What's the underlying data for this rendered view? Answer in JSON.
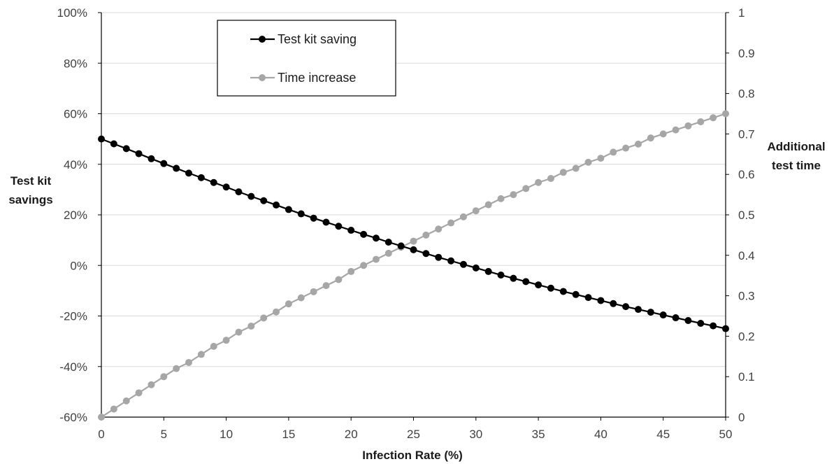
{
  "chart_data": {
    "type": "line",
    "title": "",
    "xlabel": "Infection Rate (%)",
    "ylabel_left": [
      "Test kit",
      "savings"
    ],
    "ylabel_right": [
      "Additional",
      "test time"
    ],
    "xlim": [
      0,
      50
    ],
    "ylim_left": [
      -60,
      100
    ],
    "ylim_right": [
      0,
      1
    ],
    "x_ticks": [
      "0",
      "5",
      "10",
      "15",
      "20",
      "25",
      "30",
      "35",
      "40",
      "45",
      "50"
    ],
    "y_left_ticks": [
      "-60%",
      "-40%",
      "-20%",
      "0%",
      "20%",
      "40%",
      "60%",
      "80%",
      "100%"
    ],
    "y_right_ticks": [
      "0",
      "0.1",
      "0.2",
      "0.3",
      "0.4",
      "0.5",
      "0.6",
      "0.7",
      "0.8",
      "0.9",
      "1"
    ],
    "grid": true,
    "legend_position": "top-left",
    "x": [
      0,
      1,
      2,
      3,
      4,
      5,
      6,
      7,
      8,
      9,
      10,
      11,
      12,
      13,
      14,
      15,
      16,
      17,
      18,
      19,
      20,
      21,
      22,
      23,
      24,
      25,
      26,
      27,
      28,
      29,
      30,
      31,
      32,
      33,
      34,
      35,
      36,
      37,
      38,
      39,
      40,
      41,
      42,
      43,
      44,
      45,
      46,
      47,
      48,
      49,
      50
    ],
    "series": [
      {
        "name": "Test kit saving",
        "axis": "left",
        "color": "#000000",
        "values": [
          50,
          48.1,
          46.2,
          44.2,
          42.2,
          40.3,
          38.4,
          36.5,
          34.7,
          32.8,
          31.0,
          29.1,
          27.3,
          25.6,
          23.9,
          22.1,
          20.4,
          18.7,
          17.1,
          15.5,
          13.9,
          12.3,
          10.8,
          9.2,
          7.7,
          6.2,
          4.7,
          3.2,
          1.8,
          0.4,
          -1.0,
          -2.4,
          -3.8,
          -5.1,
          -6.4,
          -7.7,
          -9.0,
          -10.3,
          -11.5,
          -12.7,
          -13.9,
          -15.1,
          -16.3,
          -17.4,
          -18.5,
          -19.6,
          -20.7,
          -21.8,
          -22.9,
          -23.9,
          -25.0
        ]
      },
      {
        "name": "Time increase",
        "axis": "right",
        "color": "#a6a6a6",
        "values": [
          0,
          0.02,
          0.04,
          0.06,
          0.08,
          0.1,
          0.12,
          0.135,
          0.155,
          0.175,
          0.19,
          0.21,
          0.225,
          0.245,
          0.26,
          0.28,
          0.295,
          0.31,
          0.325,
          0.34,
          0.36,
          0.375,
          0.39,
          0.405,
          0.42,
          0.435,
          0.45,
          0.465,
          0.48,
          0.495,
          0.51,
          0.525,
          0.54,
          0.55,
          0.565,
          0.58,
          0.59,
          0.605,
          0.615,
          0.63,
          0.64,
          0.655,
          0.665,
          0.675,
          0.69,
          0.7,
          0.71,
          0.72,
          0.73,
          0.74,
          0.75
        ]
      }
    ]
  }
}
